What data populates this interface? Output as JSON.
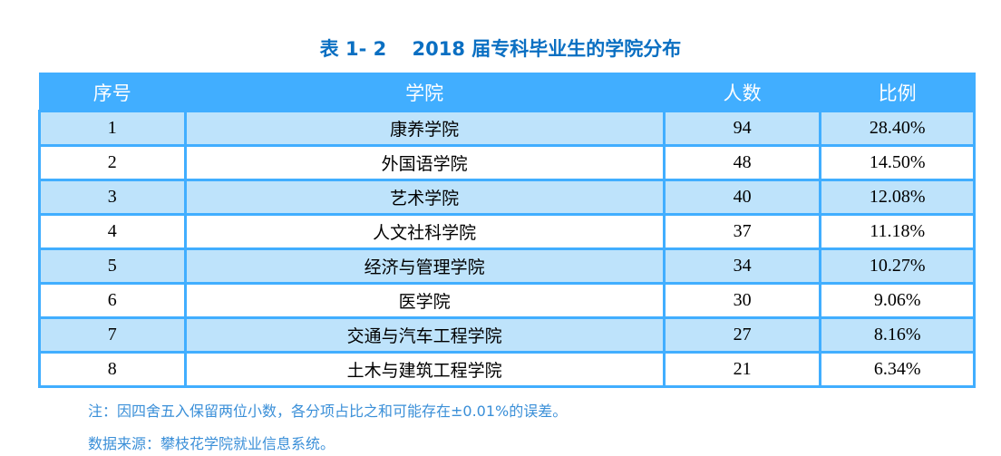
{
  "title": "表 1- 2　 2018 届专科毕业生的学院分布",
  "table": {
    "headers": [
      "序号",
      "学院",
      "人数",
      "比例"
    ],
    "rows": [
      [
        "1",
        "康养学院",
        "94",
        "28.40%"
      ],
      [
        "2",
        "外国语学院",
        "48",
        "14.50%"
      ],
      [
        "3",
        "艺术学院",
        "40",
        "12.08%"
      ],
      [
        "4",
        "人文社科学院",
        "37",
        "11.18%"
      ],
      [
        "5",
        "经济与管理学院",
        "34",
        "10.27%"
      ],
      [
        "6",
        "医学院",
        "30",
        "9.06%"
      ],
      [
        "7",
        "交通与汽车工程学院",
        "27",
        "8.16%"
      ],
      [
        "8",
        "土木与建筑工程学院",
        "21",
        "6.34%"
      ]
    ]
  },
  "notes": {
    "note": "注：因四舍五入保留两位小数，各分项占比之和可能存在±0.01%的误差。",
    "source": "数据来源：攀枝花学院就业信息系统。"
  },
  "colors": {
    "header_bg": "#41aeff",
    "row_shade": "#bee3fb",
    "title": "#0a6fc2"
  }
}
